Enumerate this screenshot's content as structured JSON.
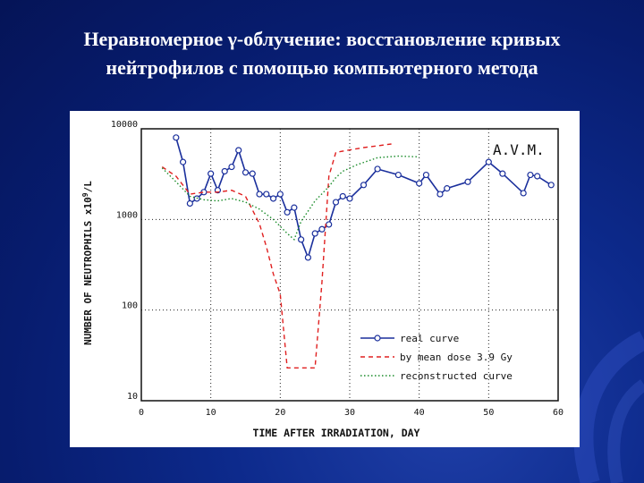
{
  "slide": {
    "title_line1": "Неравномерное γ-облучение: восстановление кривых",
    "title_line2": "нейтрофилов с помощью компьютерного метода"
  },
  "chart_data": {
    "type": "line",
    "annotation": "A.V.M.",
    "xlabel": "TIME AFTER IRRADIATION, DAY",
    "ylabel_prefix": "NUMBER OF NEUTROPHILS x10",
    "ylabel_sup": "9",
    "ylabel_suffix": "/L",
    "xlim": [
      0,
      60
    ],
    "ylim": [
      10,
      10000
    ],
    "yscale": "log",
    "grid": true,
    "legend_position": "bottom-right",
    "x_ticks": [
      "0",
      "10",
      "20",
      "30",
      "40",
      "50",
      "60"
    ],
    "y_ticks": [
      "10",
      "100",
      "1000",
      "10000"
    ],
    "series": [
      {
        "name": "real curve",
        "style": "solid-markers",
        "color": "#1a2f9c",
        "points": [
          [
            5,
            8000
          ],
          [
            6,
            4300
          ],
          [
            7,
            1500
          ],
          [
            8,
            1700
          ],
          [
            9,
            2000
          ],
          [
            10,
            3200
          ],
          [
            11,
            2100
          ],
          [
            12,
            3400
          ],
          [
            13,
            3800
          ],
          [
            14,
            5800
          ],
          [
            15,
            3300
          ],
          [
            16,
            3200
          ],
          [
            17,
            1900
          ],
          [
            18,
            1900
          ],
          [
            19,
            1700
          ],
          [
            20,
            1900
          ],
          [
            21,
            1200
          ],
          [
            22,
            1350
          ],
          [
            23,
            600
          ],
          [
            24,
            380
          ],
          [
            25,
            700
          ],
          [
            26,
            780
          ],
          [
            27,
            880
          ],
          [
            28,
            1550
          ],
          [
            29,
            1800
          ],
          [
            30,
            1700
          ],
          [
            32,
            2400
          ],
          [
            34,
            3600
          ],
          [
            37,
            3100
          ],
          [
            40,
            2500
          ],
          [
            41,
            3100
          ],
          [
            43,
            1900
          ],
          [
            44,
            2200
          ],
          [
            47,
            2600
          ],
          [
            50,
            4300
          ],
          [
            52,
            3200
          ],
          [
            55,
            1950
          ],
          [
            56,
            3100
          ],
          [
            57,
            3000
          ],
          [
            59,
            2400
          ]
        ]
      },
      {
        "name": "by mean dose 3.9 Gy",
        "style": "dashed",
        "color": "#e02020",
        "points": [
          [
            3,
            3800
          ],
          [
            5,
            3000
          ],
          [
            7,
            1900
          ],
          [
            9,
            2000
          ],
          [
            11,
            2000
          ],
          [
            13,
            2100
          ],
          [
            15,
            1800
          ],
          [
            17,
            900
          ],
          [
            18,
            500
          ],
          [
            19,
            250
          ],
          [
            20,
            150
          ],
          [
            21,
            23
          ],
          [
            25,
            23
          ],
          [
            26,
            200
          ],
          [
            27,
            3000
          ],
          [
            28,
            5500
          ],
          [
            32,
            6200
          ],
          [
            36,
            6800
          ]
        ]
      },
      {
        "name": "reconstructed curve",
        "style": "dotted",
        "color": "#1a8c2a",
        "points": [
          [
            3,
            3700
          ],
          [
            5,
            2600
          ],
          [
            7,
            1800
          ],
          [
            9,
            1650
          ],
          [
            11,
            1600
          ],
          [
            13,
            1700
          ],
          [
            15,
            1550
          ],
          [
            17,
            1300
          ],
          [
            19,
            1000
          ],
          [
            21,
            700
          ],
          [
            22,
            600
          ],
          [
            23,
            950
          ],
          [
            25,
            1600
          ],
          [
            27,
            2300
          ],
          [
            28,
            2900
          ],
          [
            29,
            3400
          ],
          [
            31,
            4000
          ],
          [
            34,
            4800
          ],
          [
            37,
            5000
          ],
          [
            40,
            4900
          ]
        ]
      }
    ]
  }
}
